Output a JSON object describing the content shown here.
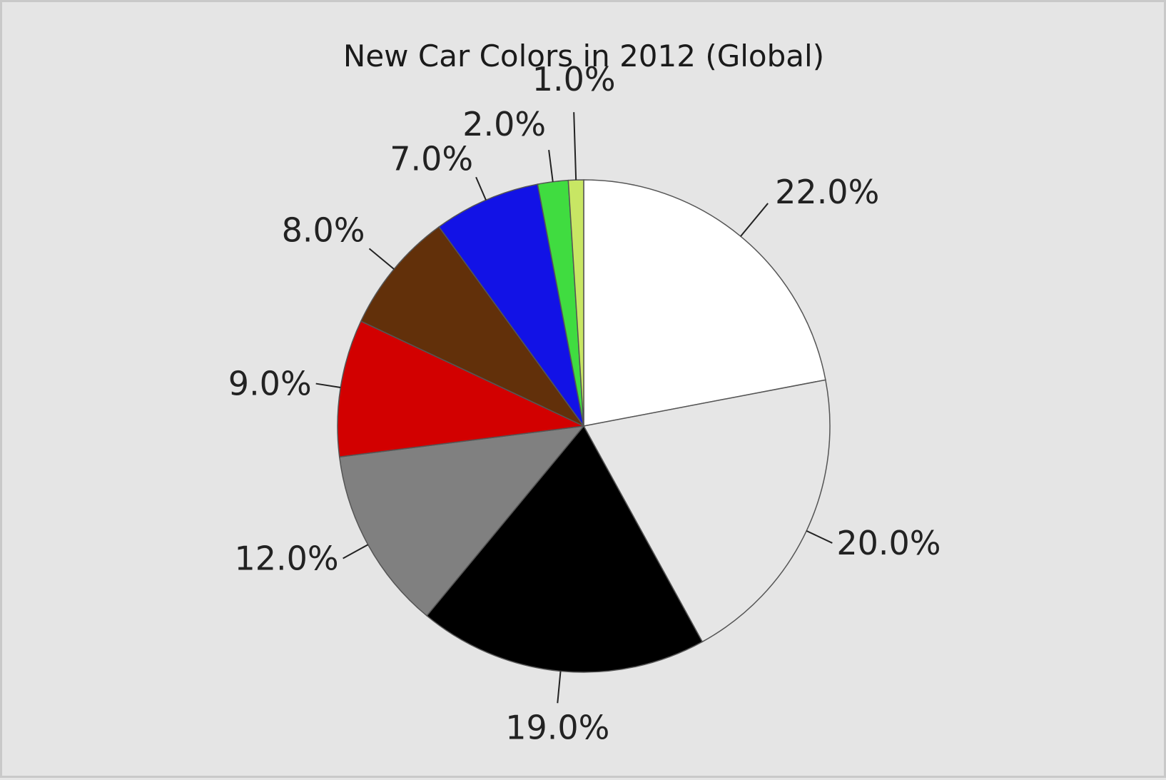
{
  "chart_data": {
    "type": "pie",
    "title": "New Car Colors in 2012 (Global)",
    "slices": [
      {
        "value": 22.0,
        "label": "22.0%",
        "color": "#ffffff"
      },
      {
        "value": 20.0,
        "label": "20.0%",
        "color": "#e6e6e6"
      },
      {
        "value": 19.0,
        "label": "19.0%",
        "color": "#000000"
      },
      {
        "value": 12.0,
        "label": "12.0%",
        "color": "#808080"
      },
      {
        "value": 9.0,
        "label": "9.0%",
        "color": "#d20000"
      },
      {
        "value": 8.0,
        "label": "8.0%",
        "color": "#62300a"
      },
      {
        "value": 7.0,
        "label": "7.0%",
        "color": "#1212e6"
      },
      {
        "value": 2.0,
        "label": "2.0%",
        "color": "#40dc40"
      },
      {
        "value": 1.0,
        "label": "1.0%",
        "color": "#c8e664"
      }
    ],
    "start": "12 o'clock",
    "direction": "clockwise",
    "legend": "none"
  }
}
